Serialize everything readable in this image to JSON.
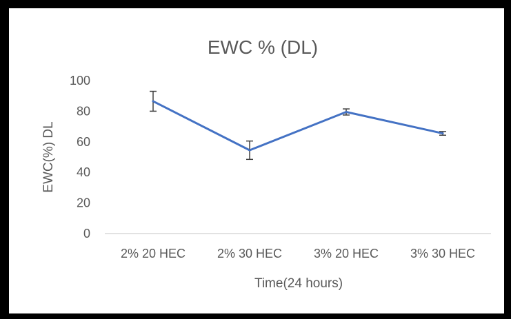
{
  "chart_data": {
    "type": "line",
    "title": "EWC % (DL)",
    "xlabel": "Time(24 hours)",
    "ylabel": "EWC(%) DL",
    "categories": [
      "2% 20 HEC",
      "2% 30 HEC",
      "3% 20 HEC",
      "3% 30 HEC"
    ],
    "series": [
      {
        "values": [
          86.5,
          54.5,
          79.5,
          65.5
        ],
        "error": [
          6.5,
          6.0,
          2.0,
          1.2
        ]
      }
    ],
    "ylim": [
      0,
      100
    ],
    "yticks": [
      0,
      20,
      40,
      60,
      80,
      100
    ],
    "grid": false,
    "legend": "none",
    "colors": {
      "line": "#4472c4",
      "error_bar": "#404040",
      "axis": "#d9d9d9",
      "text": "#595959",
      "border": "#000000"
    }
  }
}
